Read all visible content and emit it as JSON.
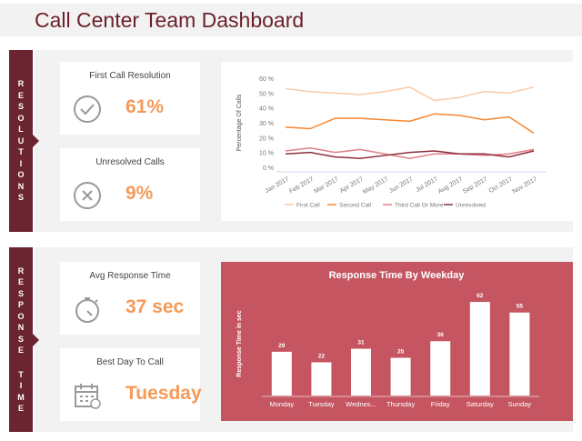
{
  "title": "Call Center Team Dashboard",
  "sections": {
    "resolutions": "RESOLUTIONS",
    "response_time": "RESPONSE TIME"
  },
  "kpis": [
    {
      "label": "First Call Resolution",
      "value": "61%",
      "icon": "check-circle-icon"
    },
    {
      "label": "Unresolved Calls",
      "value": "9%",
      "icon": "x-circle-icon"
    },
    {
      "label": "Avg Response Time",
      "value": "37 sec",
      "icon": "stopwatch-icon"
    },
    {
      "label": "Best Day To Call",
      "value": "Tuesday",
      "icon": "calendar-icon"
    }
  ],
  "colors": {
    "accent": "#f59a58",
    "dark_red": "#6b2530",
    "bar_bg": "#c55661"
  },
  "chart_data": [
    {
      "type": "line",
      "title": "",
      "ylabel": "Percentage Of Calls",
      "ylim": [
        0,
        60
      ],
      "yticks": [
        "0 %",
        "10 %",
        "20 %",
        "30 %",
        "40 %",
        "50 %",
        "60 %"
      ],
      "categories": [
        "Jan 2017",
        "Feb 2017",
        "Mar 2017",
        "Apr 2017",
        "May 2017",
        "Jun 2017",
        "Jul 2017",
        "Aug 2017",
        "Sep 2017",
        "Oct 2017",
        "Nov 2017"
      ],
      "legend": "bottom",
      "series": [
        {
          "name": "First Call",
          "color": "#fbc9a3",
          "values": [
            53,
            51,
            50,
            49,
            51,
            54,
            45,
            47,
            51,
            50,
            54
          ]
        },
        {
          "name": "Second Call",
          "color": "#f5852f",
          "values": [
            27,
            26,
            33,
            33,
            32,
            31,
            36,
            35,
            32,
            34,
            23
          ]
        },
        {
          "name": "Third Call Or More",
          "color": "#e08088",
          "values": [
            11,
            13,
            10,
            12,
            9,
            6,
            9,
            9,
            8,
            9,
            12
          ]
        },
        {
          "name": "Unresolved",
          "color": "#8c2f3c",
          "values": [
            9,
            10,
            7,
            6,
            8,
            10,
            11,
            9,
            9,
            7,
            11
          ]
        }
      ]
    },
    {
      "type": "bar",
      "title": "Response Time By Weekday",
      "ylabel": "Response Time in sec",
      "categories": [
        "Monday",
        "Tuesday",
        "Wednes...",
        "Thursday",
        "Friday",
        "Saturday",
        "Sunday"
      ],
      "values": [
        29,
        22,
        31,
        25,
        36,
        62,
        55
      ]
    }
  ]
}
